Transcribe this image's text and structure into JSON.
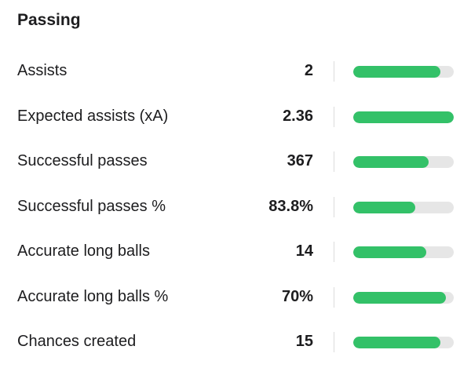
{
  "header": {
    "title": "Passing"
  },
  "rows": [
    {
      "label": "Assists",
      "value": "2",
      "bar": 0.87
    },
    {
      "label": "Expected assists (xA)",
      "value": "2.36",
      "bar": 1.0
    },
    {
      "label": "Successful passes",
      "value": "367",
      "bar": 0.75
    },
    {
      "label": "Successful passes %",
      "value": "83.8%",
      "bar": 0.62
    },
    {
      "label": "Accurate long balls",
      "value": "14",
      "bar": 0.73
    },
    {
      "label": "Accurate long balls %",
      "value": "70%",
      "bar": 0.92
    },
    {
      "label": "Chances created",
      "value": "15",
      "bar": 0.87
    }
  ]
}
